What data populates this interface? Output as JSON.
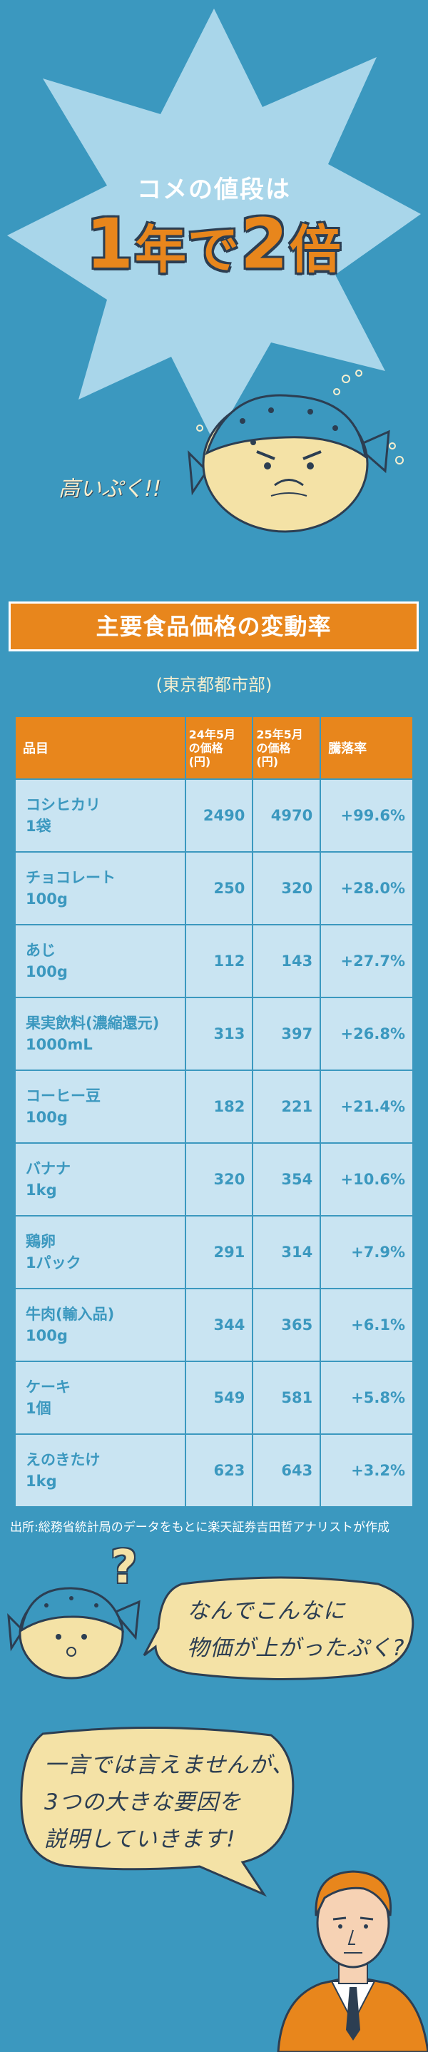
{
  "hero": {
    "subtitle": "コメの値段は",
    "title_part1": "1",
    "title_part2": "年で",
    "title_part3": "2",
    "title_part4": "倍",
    "puffer_caption": "高いぷく!!"
  },
  "table": {
    "title": "主要食品価格の変動率",
    "subtitle": "(東京都都市部)",
    "headers": [
      "品目",
      "24年5月の価格(円)",
      "25年5月の価格(円)",
      "騰落率"
    ],
    "header_lines": {
      "p1": [
        "24年5月",
        "の価格",
        "(円)"
      ],
      "p2": [
        "25年5月",
        "の価格",
        "(円)"
      ]
    },
    "rows": [
      {
        "name": "コシヒカリ",
        "unit": "1袋",
        "p24": "2490",
        "p25": "4970",
        "change": "+99.6%"
      },
      {
        "name": "チョコレート",
        "unit": "100g",
        "p24": "250",
        "p25": "320",
        "change": "+28.0%"
      },
      {
        "name": "あじ",
        "unit": "100g",
        "p24": "112",
        "p25": "143",
        "change": "+27.7%"
      },
      {
        "name": "果実飲料(濃縮還元)",
        "unit": "1000mL",
        "p24": "313",
        "p25": "397",
        "change": "+26.8%"
      },
      {
        "name": "コーヒー豆",
        "unit": "100g",
        "p24": "182",
        "p25": "221",
        "change": "+21.4%"
      },
      {
        "name": "バナナ",
        "unit": "1kg",
        "p24": "320",
        "p25": "354",
        "change": "+10.6%"
      },
      {
        "name": "鶏卵",
        "unit": "1パック",
        "p24": "291",
        "p25": "314",
        "change": "+7.9%"
      },
      {
        "name": "牛肉(輸入品)",
        "unit": "100g",
        "p24": "344",
        "p25": "365",
        "change": "+6.1%"
      },
      {
        "name": "ケーキ",
        "unit": "1個",
        "p24": "549",
        "p25": "581",
        "change": "+5.8%"
      },
      {
        "name": "えのきたけ",
        "unit": "1kg",
        "p24": "623",
        "p25": "643",
        "change": "+3.2%"
      }
    ],
    "source": "出所:総務省統計局のデータをもとに楽天証券吉田哲アナリストが作成"
  },
  "dialogue": {
    "question_mark": "?",
    "bubble1_line1": "なんでこんなに",
    "bubble1_line2": "物価が上がったぷく?",
    "bubble2_line1": "一言では言えませんが、",
    "bubble2_line2": "3つの大きな要因を",
    "bubble2_line3": "説明していきます!"
  },
  "colors": {
    "background": "#3b98bf",
    "star": "#a9d6ea",
    "accent_orange": "#e8861c",
    "table_cell": "#c9e4f2",
    "bubble": "#f4e2a6",
    "outline": "#2c3e52"
  }
}
